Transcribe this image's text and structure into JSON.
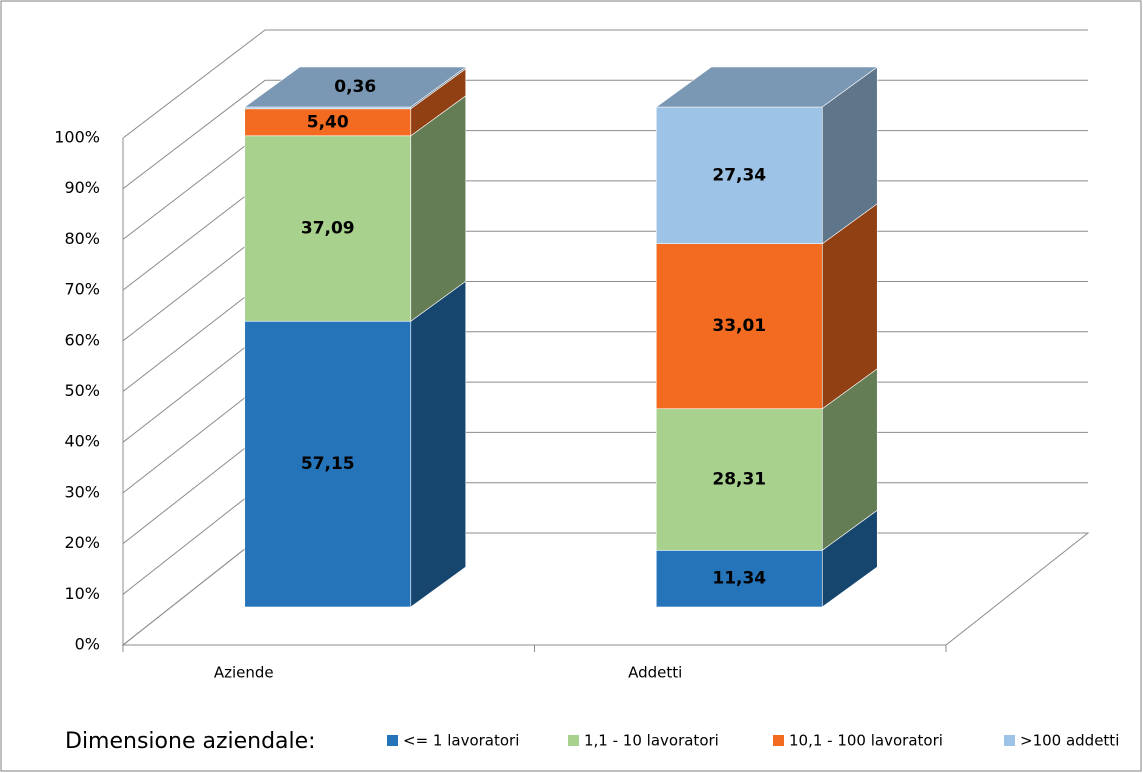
{
  "chart_data": {
    "type": "bar3d_stacked_percent",
    "categories": [
      "Aziende",
      "Addetti"
    ],
    "series": [
      {
        "name": "<= 1 lavoratori",
        "color": "#2573b8",
        "values": [
          57.15,
          11.34
        ],
        "value_labels": [
          "57,15",
          "11,34"
        ]
      },
      {
        "name": "1,1 - 10 lavoratori",
        "color": "#a9d18e",
        "values": [
          37.09,
          28.31
        ],
        "value_labels": [
          "37,09",
          "28,31"
        ]
      },
      {
        "name": "10,1 - 100 lavoratori",
        "color": "#f26b21",
        "values": [
          5.4,
          33.01
        ],
        "value_labels": [
          "5,40",
          "33,01"
        ]
      },
      {
        "name": ">100 addetti",
        "color": "#9dc3e6",
        "values": [
          0.36,
          27.34
        ],
        "value_labels": [
          "0,36",
          "27,34"
        ]
      }
    ],
    "ylim": [
      0,
      100
    ],
    "yticks": [
      {
        "value": 0,
        "label": "0%"
      },
      {
        "value": 10,
        "label": "10%"
      },
      {
        "value": 20,
        "label": "20%"
      },
      {
        "value": 30,
        "label": "30%"
      },
      {
        "value": 40,
        "label": "40%"
      },
      {
        "value": 50,
        "label": "50%"
      },
      {
        "value": 60,
        "label": "60%"
      },
      {
        "value": 70,
        "label": "70%"
      },
      {
        "value": 80,
        "label": "80%"
      },
      {
        "value": 90,
        "label": "90%"
      },
      {
        "value": 100,
        "label": "100%"
      }
    ],
    "grid": true,
    "legend_title": "Dimensione aziendale:",
    "legend_position": "bottom"
  }
}
